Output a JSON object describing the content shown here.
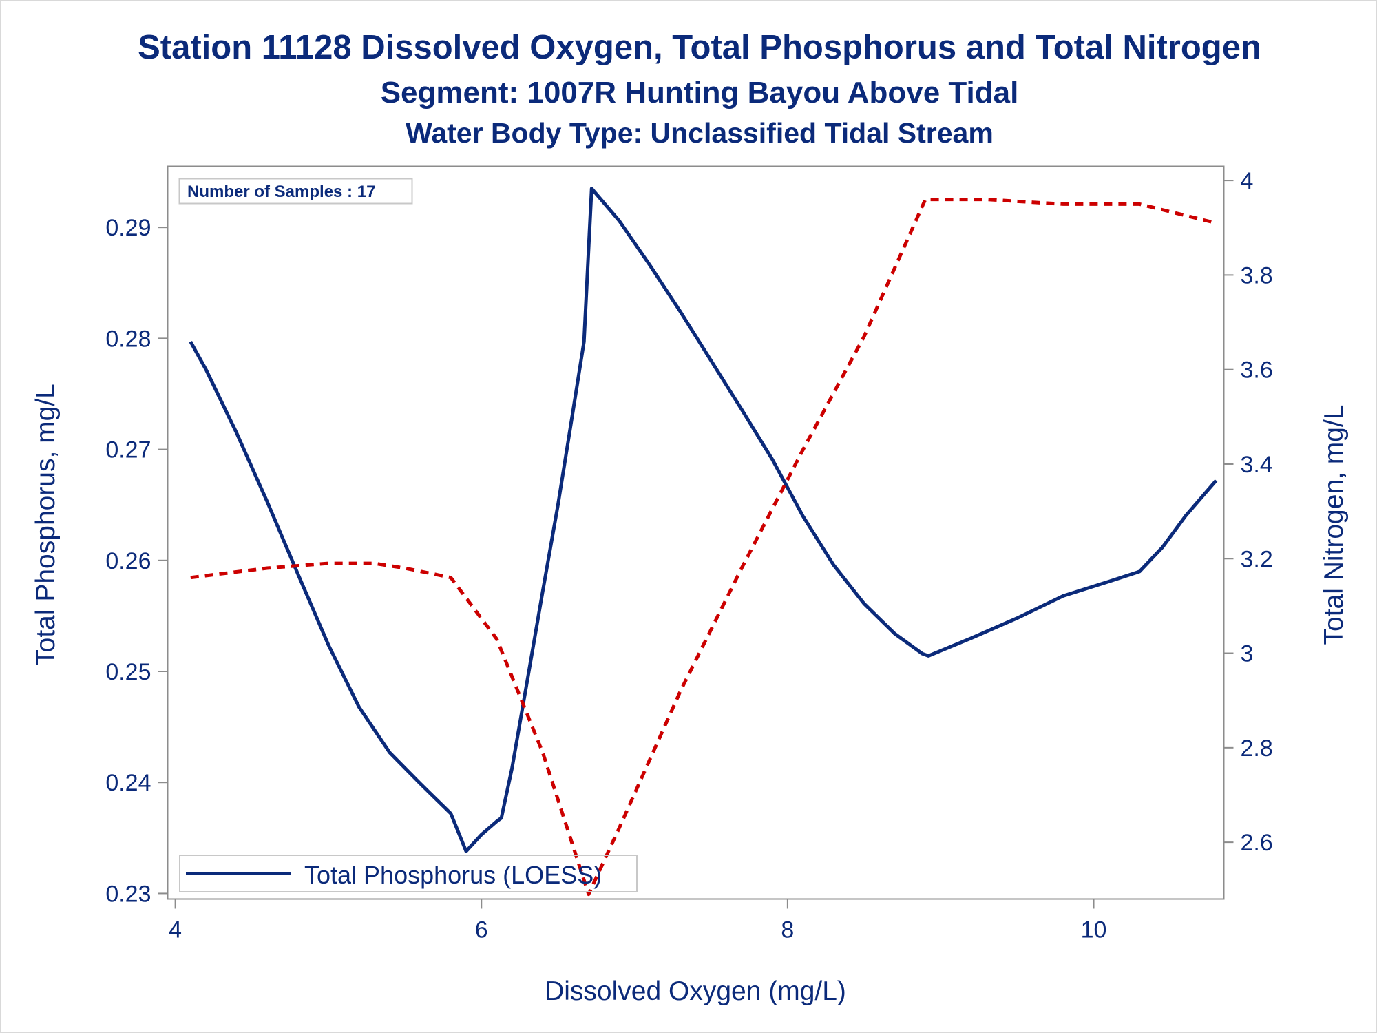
{
  "colors": {
    "text": "#0b2a7a",
    "phosphorus_line": "#0b2a7a",
    "nitrogen_line": "#cc0000",
    "axis": "#8c8c8c"
  },
  "chart_data": {
    "type": "line",
    "title": "Station 11128  Dissolved Oxygen, Total Phosphorus and Total Nitrogen",
    "subtitle": "Segment: 1007R  Hunting Bayou Above Tidal",
    "subtitle2": "Water Body Type: Unclassified Tidal Stream",
    "xlabel": "Dissolved Oxygen (mg/L)",
    "ylabel": "Total Phosphorus, mg/L",
    "y2label": "Total Nitrogen, mg/L",
    "xlim": [
      3.95,
      10.85
    ],
    "ylim": [
      0.2295,
      0.2955
    ],
    "y2lim": [
      2.48,
      4.03
    ],
    "xticks": [
      "4",
      "6",
      "8",
      "10"
    ],
    "yticks": [
      "0.23",
      "0.24",
      "0.25",
      "0.26",
      "0.27",
      "0.28",
      "0.29"
    ],
    "y2ticks": [
      "2.6",
      "2.8",
      "3",
      "3.2",
      "3.4",
      "3.6",
      "3.8",
      "4"
    ],
    "inset_label": "Number of Samples : 17",
    "grid": false,
    "legend_position": "bottom-left",
    "series": [
      {
        "name": "Total Phosphorus (LOESS)",
        "axis": "left",
        "style": "solid",
        "x": [
          4.1,
          4.2,
          4.4,
          4.6,
          4.8,
          5.0,
          5.2,
          5.4,
          5.6,
          5.8,
          5.9,
          6.0,
          6.1,
          6.13,
          6.2,
          6.3,
          6.4,
          6.5,
          6.6,
          6.67,
          6.72,
          6.9,
          7.1,
          7.3,
          7.5,
          7.7,
          7.9,
          8.1,
          8.3,
          8.5,
          8.7,
          8.88,
          8.92,
          9.2,
          9.5,
          9.8,
          10.1,
          10.3,
          10.45,
          10.6,
          10.8
        ],
        "values": [
          0.2797,
          0.2772,
          0.2715,
          0.2653,
          0.2588,
          0.2524,
          0.2468,
          0.2427,
          0.2399,
          0.2372,
          0.2338,
          0.2353,
          0.2365,
          0.2368,
          0.2413,
          0.2492,
          0.2572,
          0.265,
          0.2736,
          0.2797,
          0.2935,
          0.2906,
          0.2866,
          0.2824,
          0.278,
          0.2736,
          0.2691,
          0.264,
          0.2596,
          0.2561,
          0.2534,
          0.2516,
          0.2514,
          0.253,
          0.2548,
          0.2568,
          0.2581,
          0.259,
          0.2612,
          0.264,
          0.2672
        ]
      },
      {
        "name": "",
        "axis": "right",
        "style": "dashed",
        "x": [
          4.1,
          4.6,
          5.0,
          5.3,
          5.5,
          5.8,
          6.1,
          6.4,
          6.7,
          6.9,
          7.3,
          7.7,
          8.1,
          8.5,
          8.9,
          9.3,
          9.8,
          10.3,
          10.8
        ],
        "values": [
          3.16,
          3.18,
          3.19,
          3.19,
          3.18,
          3.16,
          3.03,
          2.79,
          2.49,
          2.63,
          2.92,
          3.18,
          3.43,
          3.67,
          3.96,
          3.96,
          3.95,
          3.95,
          3.91
        ]
      }
    ]
  }
}
